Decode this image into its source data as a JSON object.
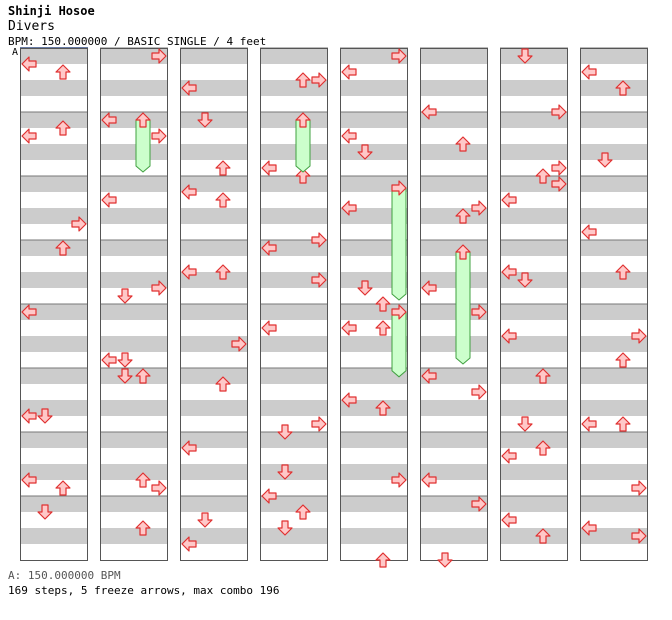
{
  "header": {
    "artist": "Shinji Hosoe",
    "title": "Divers",
    "info": "BPM: 150.000000 / BASIC SINGLE / 4 feet",
    "segment_label": "A"
  },
  "chart_data": {
    "type": "step-chart",
    "measures_per_column": 8,
    "lanes": [
      "left",
      "down",
      "up",
      "right"
    ],
    "column_count": 8,
    "freeze_arrows": 5
  },
  "colors": {
    "stripe": "#cccccc",
    "arrow_fill": "#ffc8c8",
    "arrow_stroke": "#e03030",
    "freeze_fill": "#ccffcc",
    "freeze_stroke": "#40a040"
  },
  "footer": {
    "bpm_line": "A: 150.000000 BPM",
    "summary": "169 steps, 5 freeze arrows, max combo 196"
  }
}
